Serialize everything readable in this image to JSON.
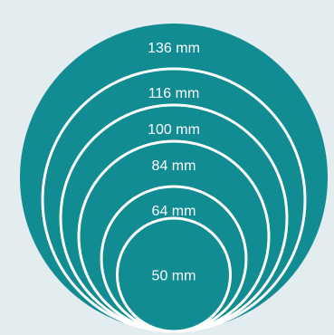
{
  "colors": {
    "background": "#e3ecef",
    "fill": "#128c93",
    "stroke": "#ffffff",
    "text": "#ffffff"
  },
  "sizes": [
    {
      "label": "136 mm",
      "value_mm": 136
    },
    {
      "label": "116 mm",
      "value_mm": 116
    },
    {
      "label": "100 mm",
      "value_mm": 100
    },
    {
      "label": "84 mm",
      "value_mm": 84
    },
    {
      "label": "64 mm",
      "value_mm": 64
    },
    {
      "label": "50 mm",
      "value_mm": 50
    }
  ]
}
